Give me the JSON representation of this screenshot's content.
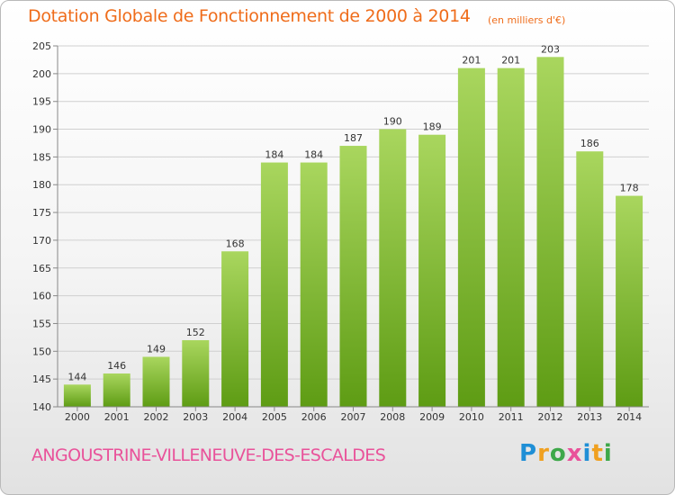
{
  "header": {
    "title": "Dotation Globale de Fonctionnement de 2000 à 2014",
    "unit": "(en milliers d'€)"
  },
  "footer": {
    "commune": "ANGOUSTRINE-VILLENEUVE-DES-ESCALDES",
    "logo_text": "Proxiti",
    "logo_colors": [
      "#1f8fd6",
      "#f0a020",
      "#3ea84a",
      "#e9529a",
      "#1f8fd6",
      "#f0a020",
      "#3ea84a"
    ]
  },
  "colors": {
    "bar_light": "#a9d65e",
    "bar_dark": "#5e9c14",
    "grid": "#d0d0d0",
    "axis": "#888888",
    "label": "#333333"
  },
  "chart_data": {
    "type": "bar",
    "title": "Dotation Globale de Fonctionnement de 2000 à 2014",
    "subtitle": "(en milliers d'€)",
    "xlabel": "",
    "ylabel": "",
    "categories": [
      "2000",
      "2001",
      "2002",
      "2003",
      "2004",
      "2005",
      "2006",
      "2007",
      "2008",
      "2009",
      "2010",
      "2011",
      "2012",
      "2013",
      "2014"
    ],
    "values": [
      144,
      146,
      149,
      152,
      168,
      184,
      184,
      187,
      190,
      189,
      201,
      201,
      203,
      186,
      178
    ],
    "ylim": [
      140,
      205
    ],
    "yticks": [
      140,
      145,
      150,
      155,
      160,
      165,
      170,
      175,
      180,
      185,
      190,
      195,
      200,
      205
    ],
    "grid": true,
    "legend": "none",
    "data_labels": true
  }
}
